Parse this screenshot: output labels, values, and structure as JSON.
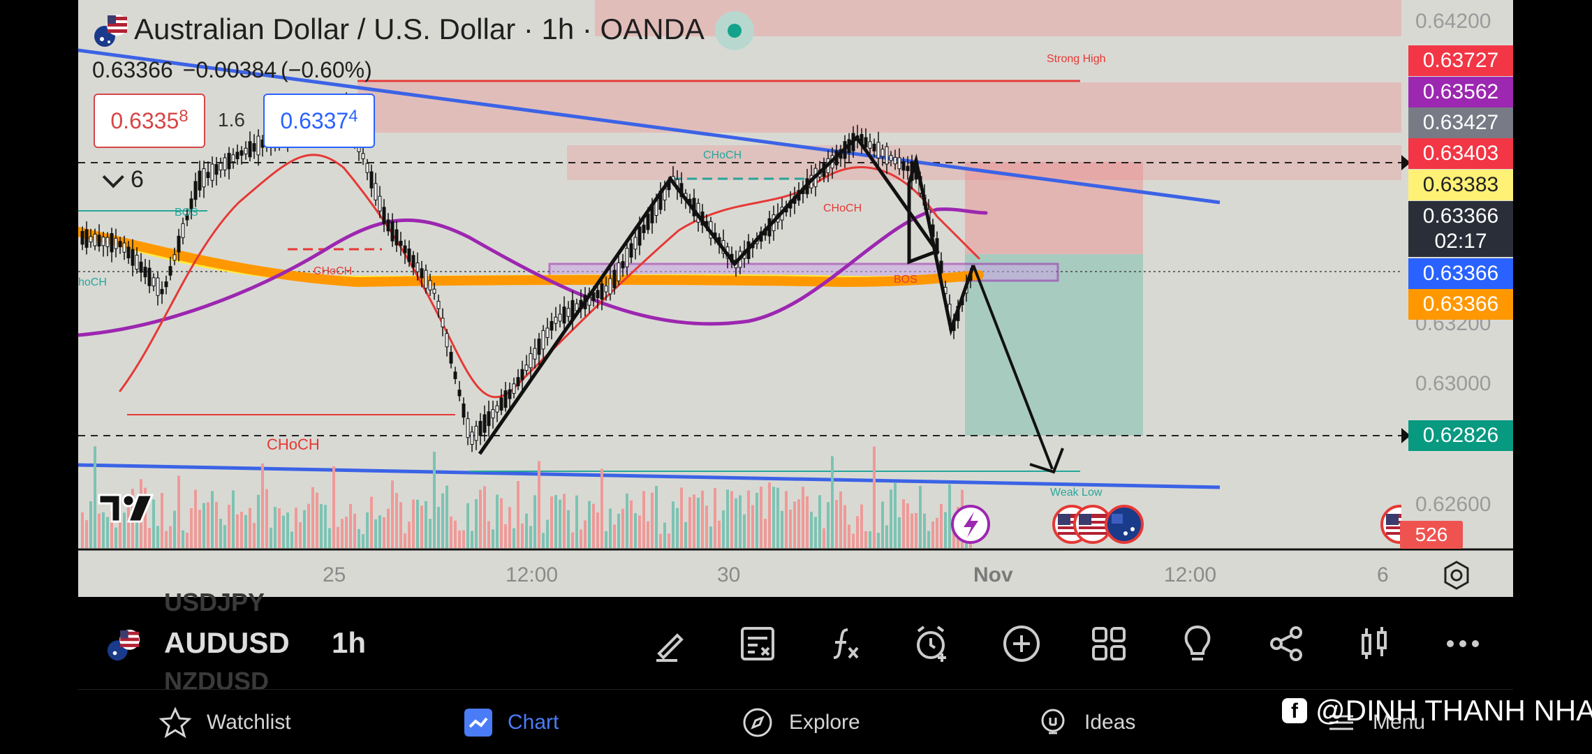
{
  "header": {
    "symbol_title": "Australian Dollar / U.S. Dollar · 1h · OANDA",
    "last_price": "0.63366",
    "change": "−0.00384",
    "change_pct": "(−0.60%)",
    "sell_price_main": "0.6335",
    "sell_price_sup": "8",
    "spread": "1.6",
    "buy_price_main": "0.6337",
    "buy_price_sup": "4",
    "indicators_count": "6"
  },
  "annotations": {
    "strong_high": "Strong High",
    "weak_low": "Weak Low",
    "choch_1": "CHoCH",
    "choch_2": "CHoCH",
    "choch_3": "CHoCH",
    "choch_big": "CHoCH",
    "choch_left": "hoCH",
    "bos_1": "BOS",
    "bos_2": "BOS"
  },
  "price_axis": {
    "ticks": [
      "0.64200",
      "0.63200",
      "0.63000",
      "0.62600"
    ],
    "labels": [
      {
        "value": "0.63727",
        "color": "#f23645"
      },
      {
        "value": "0.63562",
        "color": "#9c27b0"
      },
      {
        "value": "0.63427",
        "color": "#787b86"
      },
      {
        "value": "0.63403",
        "color": "#f23645"
      },
      {
        "value": "0.63383",
        "color": "#fff176"
      },
      {
        "value": "0.63366",
        "color": "#2a2e39"
      },
      {
        "value": "02:17",
        "color": "#2a2e39"
      },
      {
        "value": "0.63366",
        "color": "#2962ff"
      },
      {
        "value": "0.63366",
        "color": "#ff9800"
      },
      {
        "value": "0.62826",
        "color": "#089981"
      }
    ],
    "volume_count": "526"
  },
  "time_axis": {
    "ticks": [
      "25",
      "12:00",
      "30",
      "Nov",
      "12:00",
      "6"
    ]
  },
  "toolbar": {
    "ghost_above": "USDJPY",
    "ghost_below": "NZDUSD",
    "symbol": "AUDUSD",
    "interval": "1h",
    "tools": [
      "pen-icon",
      "notes-icon",
      "function-icon",
      "alarm-add-icon",
      "add-circle-icon",
      "grid-icon",
      "lightbulb-icon",
      "share-icon",
      "candles-icon",
      "more-icon"
    ]
  },
  "nav": {
    "watchlist": "Watchlist",
    "chart": "Chart",
    "explore": "Explore",
    "ideas": "Ideas",
    "menu": "Menu"
  },
  "watermark": "@DINH THANH NHA",
  "colors": {
    "background": "#000000",
    "chart_bg": "#d9d9d4",
    "accent": "#2962ff",
    "bull": "#26a69a",
    "bear": "#ef5350"
  }
}
